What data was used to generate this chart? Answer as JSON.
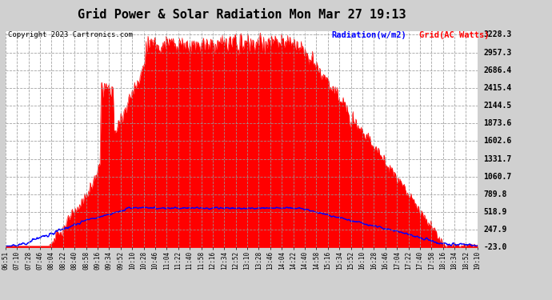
{
  "title": "Grid Power & Solar Radiation Mon Mar 27 19:13",
  "copyright": "Copyright 2023 Cartronics.com",
  "legend_radiation": "Radiation(w/m2)",
  "legend_grid": "Grid(AC Watts)",
  "plot_bg_color": "#ffffff",
  "grid_color": "#aaaaaa",
  "yticks": [
    3228.3,
    2957.3,
    2686.4,
    2415.4,
    2144.5,
    1873.6,
    1602.6,
    1331.7,
    1060.7,
    789.8,
    518.9,
    247.9,
    -23.0
  ],
  "ymin": -23.0,
  "ymax": 3228.3,
  "xtick_labels": [
    "06:51",
    "07:10",
    "07:28",
    "07:46",
    "08:04",
    "08:22",
    "08:40",
    "08:58",
    "09:16",
    "09:34",
    "09:52",
    "10:10",
    "10:28",
    "10:46",
    "11:04",
    "11:22",
    "11:40",
    "11:58",
    "12:16",
    "12:34",
    "12:52",
    "13:10",
    "13:28",
    "13:46",
    "14:04",
    "14:22",
    "14:40",
    "14:58",
    "15:16",
    "15:34",
    "15:52",
    "16:10",
    "16:28",
    "16:46",
    "17:04",
    "17:22",
    "17:40",
    "17:58",
    "18:16",
    "18:34",
    "18:52",
    "19:10"
  ],
  "radiation_color": "#0000ff",
  "grid_ac_color": "#ff0000",
  "outer_bg": "#d0d0d0",
  "title_fontsize": 11,
  "copyright_fontsize": 6.5,
  "legend_fontsize": 7.5,
  "tick_fontsize": 5.5,
  "ytick_fontsize": 7.0
}
